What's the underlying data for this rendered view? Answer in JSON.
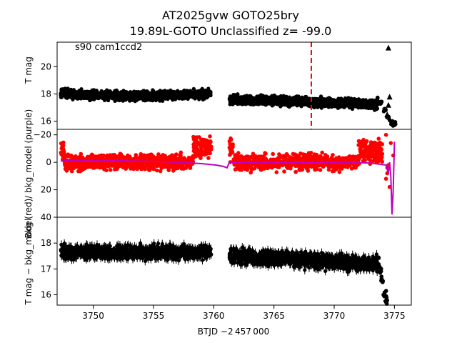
{
  "figure": {
    "title_line1": "AT2025gvw  GOTO25bry",
    "title_line2": "19.89L-GOTO Unclassified z= -99.0",
    "xlabel": "BTJD −2 457 000",
    "x_ticks": [
      "3750",
      "3755",
      "3760",
      "3765",
      "3770",
      "3775"
    ],
    "colors": {
      "data": "#000000",
      "bkg": "#ff0000",
      "bkg_model": "#bf00bf",
      "marker_line": "#ff0000"
    }
  },
  "chart_data": [
    {
      "type": "scatter",
      "panel": "top",
      "annotation": "s90 cam1ccd2",
      "ylabel": "T mag",
      "xlim": [
        3747.0,
        3776.4
      ],
      "ylim": [
        21.8,
        15.4
      ],
      "y_inverted": true,
      "y_ticks": [
        "16",
        "18",
        "20"
      ],
      "y_tick_values": [
        16,
        18,
        20
      ],
      "segments": [
        {
          "x_start": 3747.3,
          "x_end": 3759.8,
          "y_center": 17.85,
          "y_spread": 0.85
        },
        {
          "x_start": 3761.3,
          "x_end": 3773.6,
          "y_center": 17.6,
          "y_spread": 0.9
        }
      ],
      "rise": [
        [
          3773.5,
          17.6
        ],
        [
          3773.9,
          17.3
        ],
        [
          3774.2,
          16.8
        ],
        [
          3774.5,
          16.2
        ],
        [
          3774.8,
          15.9
        ],
        [
          3775.0,
          15.8
        ]
      ],
      "upper_limits": [
        [
          3774.4,
          16.5
        ],
        [
          3774.5,
          17.2
        ],
        [
          3774.6,
          17.8
        ],
        [
          3774.5,
          21.4
        ]
      ],
      "vline_x": 3768.1
    },
    {
      "type": "scatter",
      "panel": "middle",
      "ylabel": "Bkg (red)/ bkg_model (purple)",
      "xlim": [
        3747.0,
        3776.4
      ],
      "ylim": [
        -24,
        40
      ],
      "y_ticks": [
        "−20",
        "0",
        "20",
        "40"
      ],
      "y_tick_values": [
        -20,
        0,
        20,
        40
      ],
      "series": [
        {
          "name": "Bkg",
          "color": "#ff0000"
        },
        {
          "name": "bkg_model",
          "color": "#bf00bf"
        }
      ],
      "bkg_model_line": [
        [
          3747.3,
          -1
        ],
        [
          3750,
          -1.5
        ],
        [
          3753,
          -1
        ],
        [
          3756,
          -0.5
        ],
        [
          3759,
          1
        ],
        [
          3760.2,
          2
        ],
        [
          3760.8,
          3
        ],
        [
          3761.1,
          4
        ],
        [
          3761.3,
          0
        ],
        [
          3765,
          0
        ],
        [
          3770,
          0
        ],
        [
          3773,
          0.5
        ],
        [
          3774.3,
          2
        ],
        [
          3774.5,
          8
        ],
        [
          3774.6,
          0
        ],
        [
          3774.7,
          10
        ],
        [
          3774.8,
          38
        ],
        [
          3774.9,
          20
        ],
        [
          3775.0,
          -15
        ]
      ]
    },
    {
      "type": "scatter",
      "panel": "bottom",
      "ylabel": "T mag − bkg_model",
      "xlim": [
        3747.0,
        3776.4
      ],
      "ylim": [
        19.0,
        15.6
      ],
      "y_inverted": true,
      "y_ticks": [
        "16",
        "17",
        "18"
      ],
      "y_tick_values": [
        16,
        17,
        18
      ],
      "segments": [
        {
          "x_start": 3747.3,
          "x_end": 3759.8,
          "y_center": 17.65,
          "y_spread": 0.7
        },
        {
          "x_start": 3761.3,
          "x_end": 3773.6,
          "y_center": 17.5,
          "y_spread": 0.75
        }
      ],
      "rise": [
        [
          3773.6,
          17.3
        ],
        [
          3773.8,
          17.0
        ],
        [
          3774.0,
          16.6
        ],
        [
          3774.2,
          16.0
        ],
        [
          3774.3,
          15.8
        ]
      ]
    }
  ]
}
